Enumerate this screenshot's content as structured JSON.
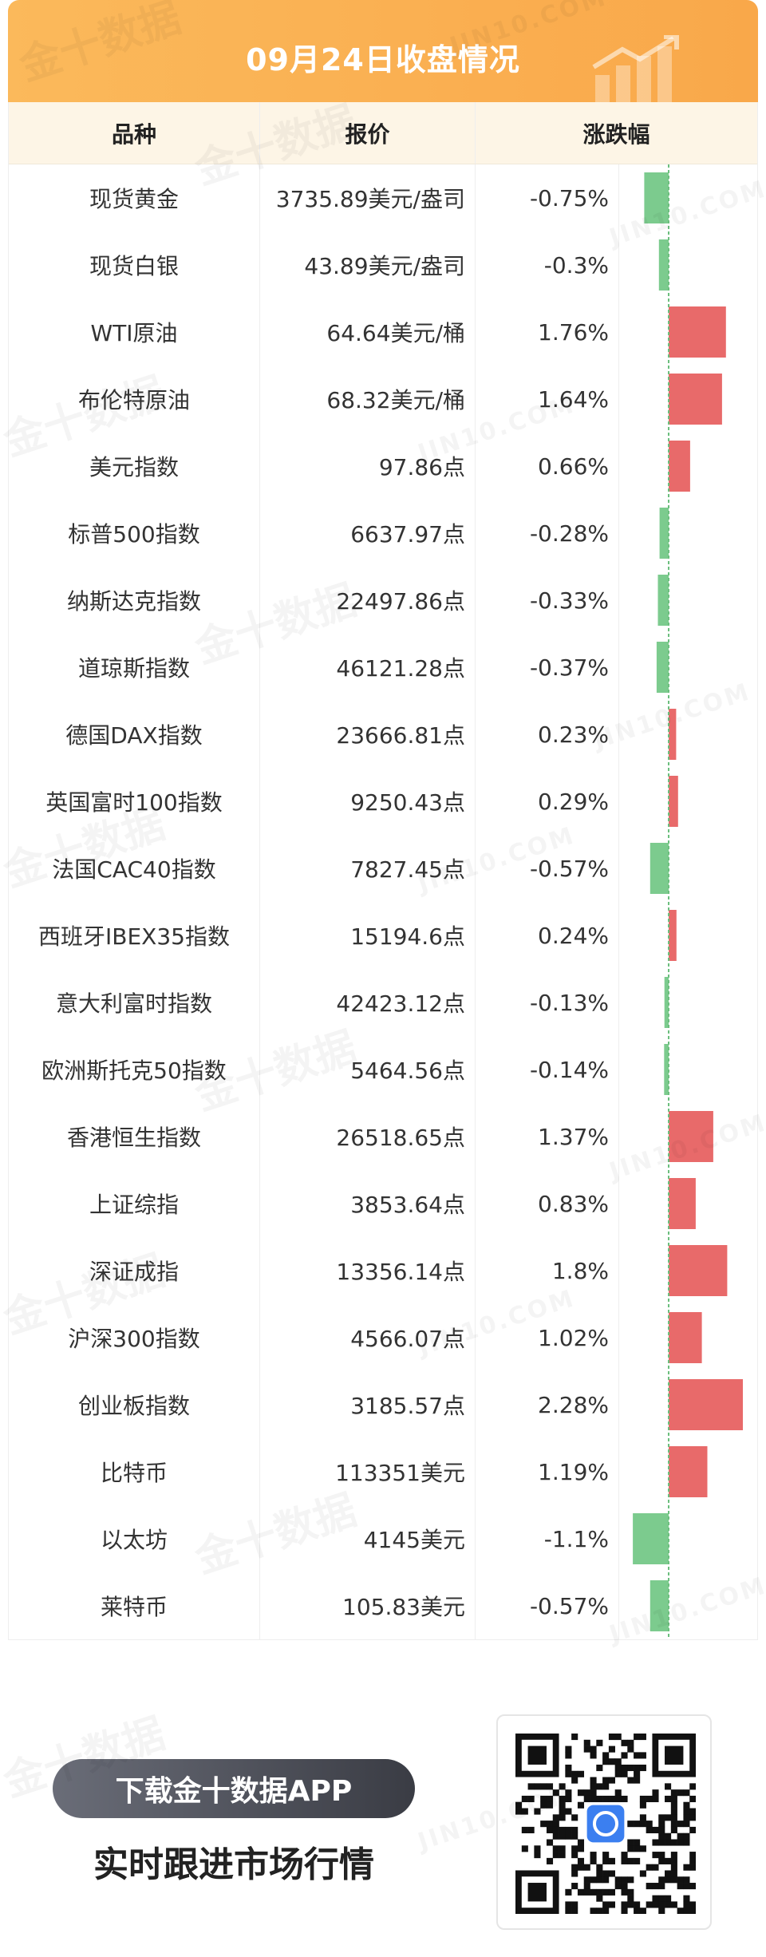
{
  "header": {
    "title": "09月24日收盘情况"
  },
  "columns": {
    "name": "品种",
    "price": "报价",
    "change": "涨跌幅"
  },
  "colors": {
    "up": "#e86a6a",
    "down": "#7ccb8e",
    "accent": "#f9a84a",
    "header_bg": "#fdf5e6"
  },
  "chart_data": {
    "type": "bar",
    "title": "09月24日收盘情况",
    "categories": [
      "现货黄金",
      "现货白银",
      "WTI原油",
      "布伦特原油",
      "美元指数",
      "标普500指数",
      "纳斯达克指数",
      "道琼斯指数",
      "德国DAX指数",
      "英国富时100指数",
      "法国CAC40指数",
      "西班牙IBEX35指数",
      "意大利富时指数",
      "欧洲斯托克50指数",
      "香港恒生指数",
      "上证综指",
      "深证成指",
      "沪深300指数",
      "创业板指数",
      "比特币",
      "以太坊",
      "莱特币"
    ],
    "prices": [
      "3735.89美元/盎司",
      "43.89美元/盎司",
      "64.64美元/桶",
      "68.32美元/桶",
      "97.86点",
      "6637.97点",
      "22497.86点",
      "46121.28点",
      "23666.81点",
      "9250.43点",
      "7827.45点",
      "15194.6点",
      "42423.12点",
      "5464.56点",
      "26518.65点",
      "3853.64点",
      "13356.14点",
      "4566.07点",
      "3185.57点",
      "113351美元",
      "4145美元",
      "105.83美元"
    ],
    "change_labels": [
      "-0.75%",
      "-0.3%",
      "1.76%",
      "1.64%",
      "0.66%",
      "-0.28%",
      "-0.33%",
      "-0.37%",
      "0.23%",
      "0.29%",
      "-0.57%",
      "0.24%",
      "-0.13%",
      "-0.14%",
      "1.37%",
      "0.83%",
      "1.8%",
      "1.02%",
      "2.28%",
      "1.19%",
      "-1.1%",
      "-0.57%"
    ],
    "values": [
      -0.75,
      -0.3,
      1.76,
      1.64,
      0.66,
      -0.28,
      -0.33,
      -0.37,
      0.23,
      0.29,
      -0.57,
      0.24,
      -0.13,
      -0.14,
      1.37,
      0.83,
      1.8,
      1.02,
      2.28,
      1.19,
      -1.1,
      -0.57
    ]
  },
  "footer": {
    "download_label": "下载金十数据APP",
    "slogan": "实时跟进市场行情"
  },
  "watermark": {
    "brand": "金十数据",
    "domain": "JIN10.COM"
  }
}
